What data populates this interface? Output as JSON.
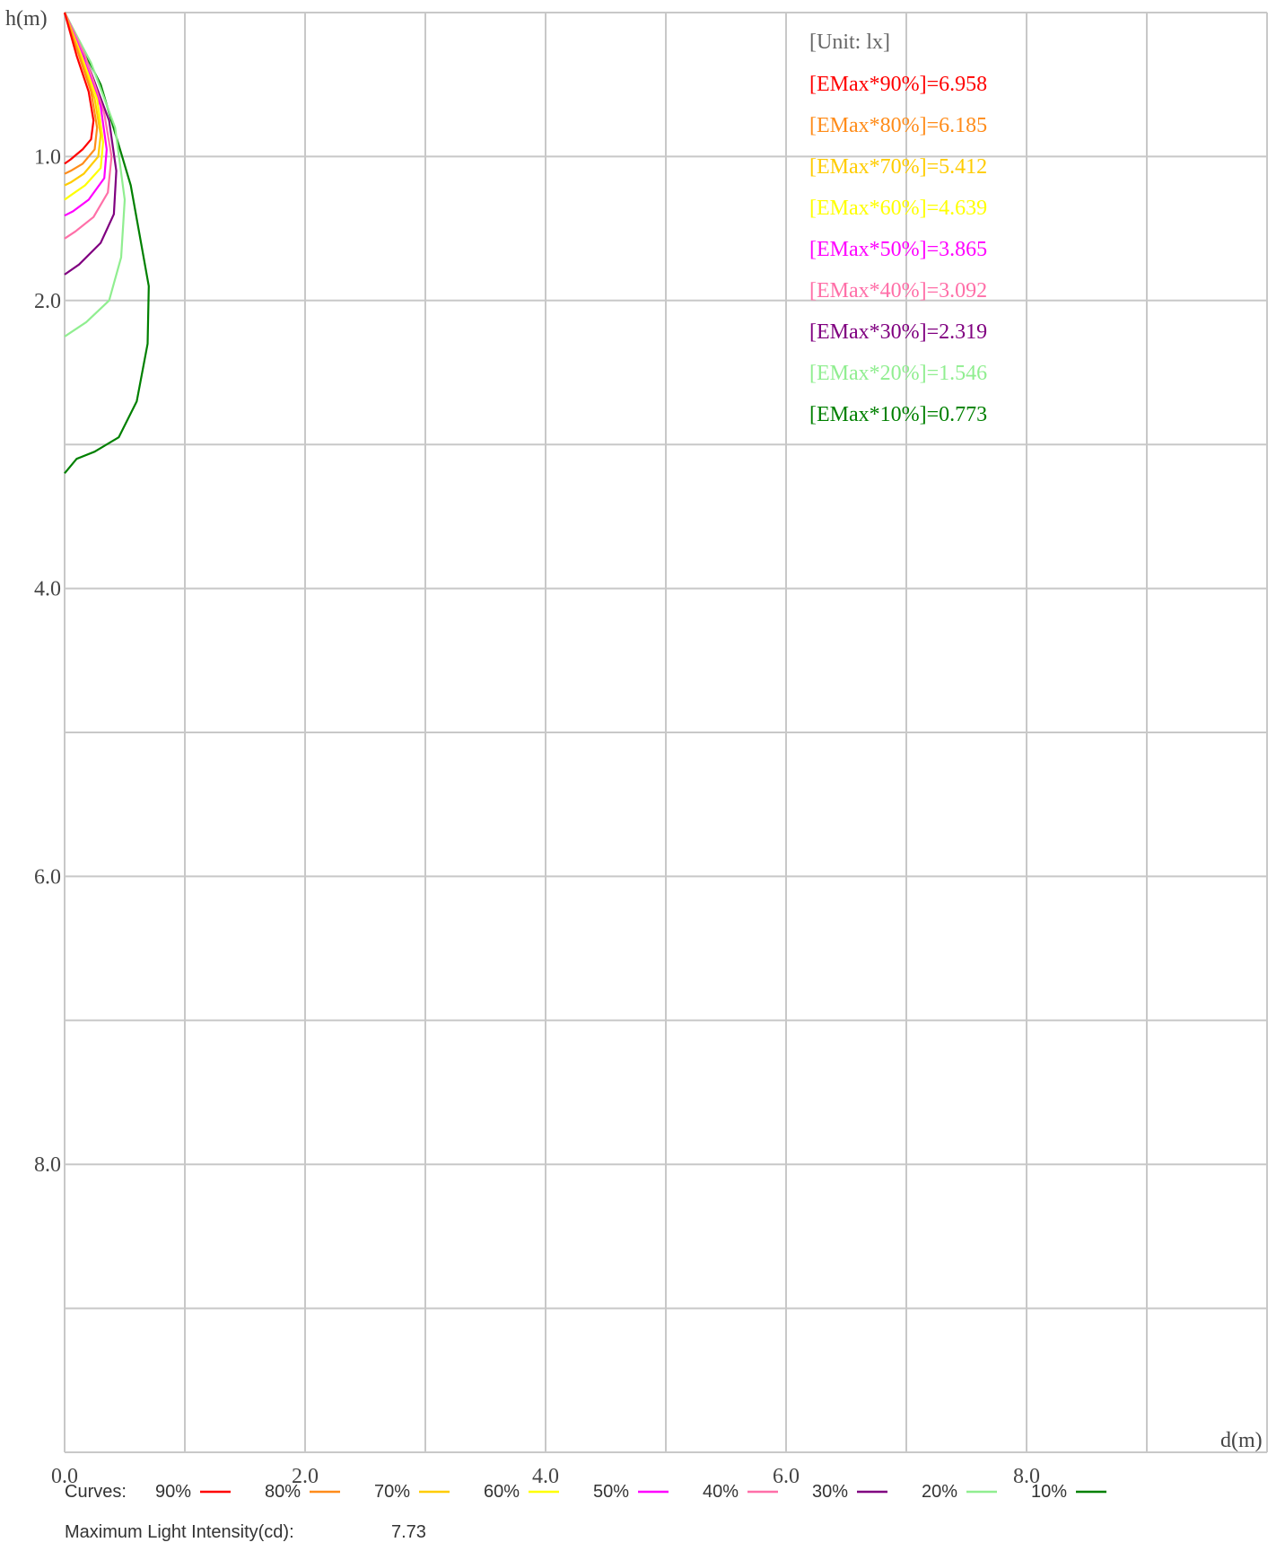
{
  "chart_data": {
    "type": "line",
    "xlabel": "d(m)",
    "ylabel": "h(m)",
    "xlim": [
      0,
      10
    ],
    "ylim": [
      0,
      10
    ],
    "y_inverted": true,
    "grid": true,
    "x_ticks": [
      "0.0",
      "2.0",
      "4.0",
      "6.0",
      "8.0"
    ],
    "y_ticks": [
      "1.0",
      "2.0",
      "4.0",
      "6.0",
      "8.0"
    ],
    "unit_label": "[Unit: lx]",
    "levels": [
      {
        "label": "[EMax*90%]=6.958",
        "color": "#ff0000"
      },
      {
        "label": "[EMax*80%]=6.185",
        "color": "#ff8c1a"
      },
      {
        "label": "[EMax*70%]=5.412",
        "color": "#ffcc00"
      },
      {
        "label": "[EMax*60%]=4.639",
        "color": "#ffff00"
      },
      {
        "label": "[EMax*50%]=3.865",
        "color": "#ff00ff"
      },
      {
        "label": "[EMax*40%]=3.092",
        "color": "#ff6fa8"
      },
      {
        "label": "[EMax*30%]=2.319",
        "color": "#800080"
      },
      {
        "label": "[EMax*20%]=1.546",
        "color": "#90ee90"
      },
      {
        "label": "[EMax*10%]=0.773",
        "color": "#008000"
      }
    ],
    "series": [
      {
        "name": "90%",
        "color": "#ff0000",
        "points": [
          [
            0,
            0
          ],
          [
            0.1,
            0.3
          ],
          [
            0.2,
            0.55
          ],
          [
            0.24,
            0.75
          ],
          [
            0.22,
            0.88
          ],
          [
            0.15,
            0.95
          ],
          [
            0.05,
            1.02
          ],
          [
            0,
            1.05
          ]
        ]
      },
      {
        "name": "80%",
        "color": "#ff8c1a",
        "points": [
          [
            0,
            0
          ],
          [
            0.12,
            0.3
          ],
          [
            0.22,
            0.55
          ],
          [
            0.27,
            0.8
          ],
          [
            0.25,
            0.95
          ],
          [
            0.15,
            1.05
          ],
          [
            0.05,
            1.1
          ],
          [
            0,
            1.12
          ]
        ]
      },
      {
        "name": "70%",
        "color": "#ffcc00",
        "points": [
          [
            0,
            0
          ],
          [
            0.13,
            0.3
          ],
          [
            0.25,
            0.6
          ],
          [
            0.3,
            0.85
          ],
          [
            0.28,
            1.0
          ],
          [
            0.16,
            1.12
          ],
          [
            0.05,
            1.18
          ],
          [
            0,
            1.2
          ]
        ]
      },
      {
        "name": "60%",
        "color": "#ffff00",
        "points": [
          [
            0,
            0
          ],
          [
            0.14,
            0.3
          ],
          [
            0.27,
            0.6
          ],
          [
            0.32,
            0.9
          ],
          [
            0.3,
            1.08
          ],
          [
            0.17,
            1.2
          ],
          [
            0.05,
            1.27
          ],
          [
            0,
            1.3
          ]
        ]
      },
      {
        "name": "50%",
        "color": "#ff00ff",
        "points": [
          [
            0,
            0
          ],
          [
            0.15,
            0.3
          ],
          [
            0.3,
            0.65
          ],
          [
            0.35,
            0.95
          ],
          [
            0.33,
            1.15
          ],
          [
            0.2,
            1.3
          ],
          [
            0.07,
            1.38
          ],
          [
            0,
            1.41
          ]
        ]
      },
      {
        "name": "40%",
        "color": "#ff6fa8",
        "points": [
          [
            0,
            0
          ],
          [
            0.17,
            0.3
          ],
          [
            0.33,
            0.7
          ],
          [
            0.39,
            1.0
          ],
          [
            0.36,
            1.25
          ],
          [
            0.24,
            1.42
          ],
          [
            0.09,
            1.52
          ],
          [
            0,
            1.57
          ]
        ]
      },
      {
        "name": "30%",
        "color": "#800080",
        "points": [
          [
            0,
            0
          ],
          [
            0.19,
            0.35
          ],
          [
            0.37,
            0.75
          ],
          [
            0.43,
            1.1
          ],
          [
            0.41,
            1.4
          ],
          [
            0.3,
            1.6
          ],
          [
            0.12,
            1.75
          ],
          [
            0,
            1.82
          ]
        ]
      },
      {
        "name": "20%",
        "color": "#90ee90",
        "points": [
          [
            0,
            0
          ],
          [
            0.22,
            0.35
          ],
          [
            0.42,
            0.8
          ],
          [
            0.5,
            1.3
          ],
          [
            0.47,
            1.7
          ],
          [
            0.37,
            2.0
          ],
          [
            0.18,
            2.15
          ],
          [
            0,
            2.25
          ]
        ]
      },
      {
        "name": "10%",
        "color": "#008000",
        "points": [
          [
            0,
            0
          ],
          [
            0.3,
            0.5
          ],
          [
            0.55,
            1.2
          ],
          [
            0.7,
            1.9
          ],
          [
            0.69,
            2.3
          ],
          [
            0.6,
            2.7
          ],
          [
            0.45,
            2.95
          ],
          [
            0.25,
            3.05
          ],
          [
            0.1,
            3.1
          ],
          [
            0,
            3.2
          ]
        ]
      }
    ],
    "legend": {
      "prefix": "Curves:",
      "items": [
        {
          "label": "90%",
          "color": "#ff0000"
        },
        {
          "label": "80%",
          "color": "#ff8c1a"
        },
        {
          "label": "70%",
          "color": "#ffcc00"
        },
        {
          "label": "60%",
          "color": "#ffff00"
        },
        {
          "label": "50%",
          "color": "#ff00ff"
        },
        {
          "label": "40%",
          "color": "#ff6fa8"
        },
        {
          "label": "30%",
          "color": "#800080"
        },
        {
          "label": "20%",
          "color": "#90ee90"
        },
        {
          "label": "10%",
          "color": "#008000"
        }
      ]
    },
    "max_intensity_label": "Maximum Light Intensity(cd):",
    "max_intensity_value": "7.73"
  }
}
